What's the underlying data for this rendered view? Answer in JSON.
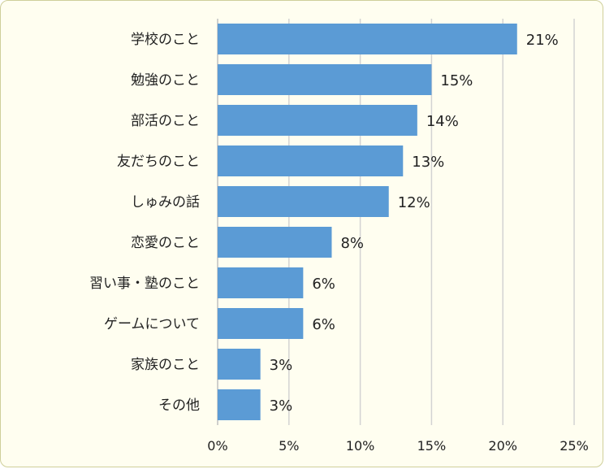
{
  "chart_data": {
    "type": "bar",
    "orientation": "horizontal",
    "categories": [
      "学校のこと",
      "勉強のこと",
      "部活のこと",
      "友だちのこと",
      "しゅみの話",
      "恋愛のこと",
      "習い事・塾のこと",
      "ゲームについて",
      "家族のこと",
      "その他"
    ],
    "values": [
      21,
      15,
      14,
      13,
      12,
      8,
      6,
      6,
      3,
      3
    ],
    "value_labels": [
      "21%",
      "15%",
      "14%",
      "13%",
      "12%",
      "8%",
      "6%",
      "6%",
      "3%",
      "3%"
    ],
    "xlim": [
      0,
      25
    ],
    "x_ticks": [
      0,
      5,
      10,
      15,
      20,
      25
    ],
    "x_tick_labels": [
      "0%",
      "5%",
      "10%",
      "15%",
      "20%",
      "25%"
    ],
    "grid": true,
    "legend": "none",
    "bar_color": "#5b9bd5",
    "background_color": "#fffef0",
    "border_color": "#cfcf9a"
  }
}
